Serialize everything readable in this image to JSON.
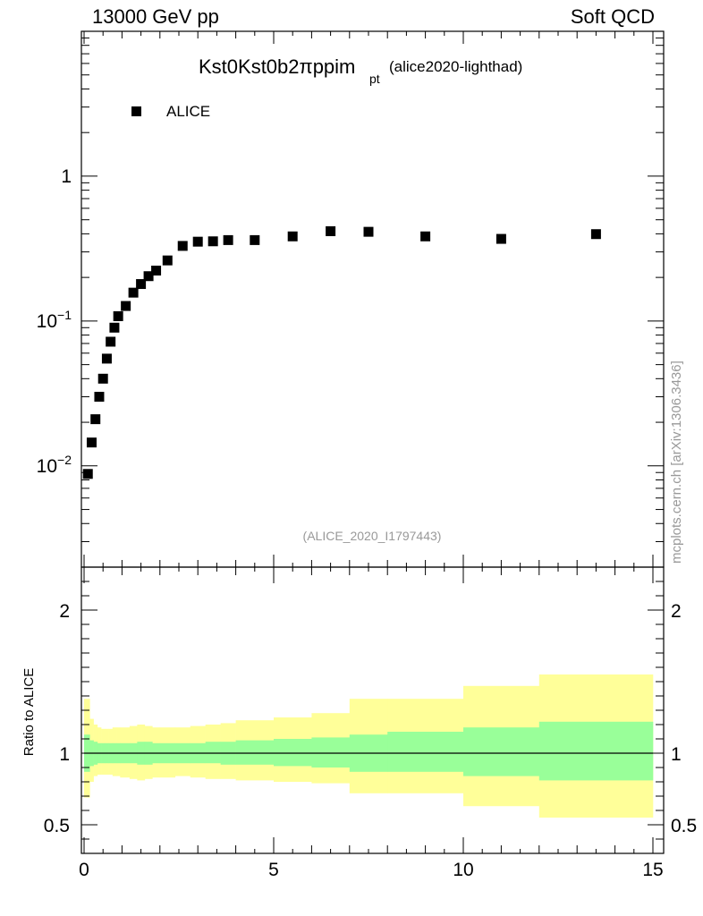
{
  "header": {
    "energy_label": "13000 GeV pp",
    "category_label": "Soft QCD"
  },
  "side_label": "mcplots.cern.ch [arXiv:1306.3436]",
  "chart_data": [
    {
      "type": "scatter",
      "panel": "main",
      "title": "Kst0Kst0b2πppim",
      "title_subscript": "pt",
      "title_suffix": "(alice2020-lighthad)",
      "watermark": "(ALICE_2020_I1797443)",
      "yscale": "log",
      "ylim": [
        0.002,
        10
      ],
      "xlim": [
        0,
        15
      ],
      "y_ticks": [
        {
          "value": 1,
          "label": "1"
        },
        {
          "value": 0.1,
          "label": "10",
          "exp": "−1"
        },
        {
          "value": 0.01,
          "label": "10",
          "exp": "−2"
        }
      ],
      "series": [
        {
          "name": "ALICE",
          "color": "#000000",
          "x": [
            0.1,
            0.2,
            0.3,
            0.4,
            0.5,
            0.6,
            0.7,
            0.8,
            0.9,
            1.1,
            1.3,
            1.5,
            1.7,
            1.9,
            2.2,
            2.6,
            3.0,
            3.4,
            3.8,
            4.5,
            5.5,
            6.5,
            7.5,
            9.0,
            11.0,
            13.5
          ],
          "y": [
            0.0088,
            0.0145,
            0.021,
            0.03,
            0.04,
            0.055,
            0.072,
            0.09,
            0.108,
            0.127,
            0.157,
            0.18,
            0.204,
            0.223,
            0.262,
            0.33,
            0.353,
            0.355,
            0.362,
            0.362,
            0.384,
            0.417,
            0.413,
            0.384,
            0.369,
            0.398
          ]
        }
      ]
    },
    {
      "type": "area",
      "panel": "ratio",
      "ylabel": "Ratio to ALICE",
      "ylim": [
        0.3,
        2.3
      ],
      "xlim": [
        0,
        15
      ],
      "x_ticks": [
        0,
        5,
        10,
        15
      ],
      "y_ticks": [
        0.5,
        1,
        2
      ],
      "reference_line": 1,
      "bins": [
        0,
        0.15,
        0.25,
        0.35,
        0.45,
        0.55,
        0.65,
        0.75,
        0.85,
        0.95,
        1.2,
        1.4,
        1.6,
        1.8,
        2.0,
        2.4,
        2.8,
        3.2,
        3.6,
        4.0,
        5.0,
        6.0,
        7.0,
        8.0,
        10.0,
        12.0,
        15.0
      ],
      "series": [
        {
          "name": "stat",
          "color": "#99ff99",
          "lo": [
            0.87,
            0.91,
            0.92,
            0.93,
            0.93,
            0.93,
            0.93,
            0.93,
            0.93,
            0.93,
            0.93,
            0.92,
            0.92,
            0.93,
            0.93,
            0.93,
            0.93,
            0.93,
            0.92,
            0.92,
            0.91,
            0.9,
            0.87,
            0.87,
            0.84,
            0.81
          ],
          "hi": [
            1.13,
            1.09,
            1.08,
            1.07,
            1.07,
            1.07,
            1.07,
            1.07,
            1.07,
            1.07,
            1.07,
            1.08,
            1.08,
            1.07,
            1.07,
            1.07,
            1.07,
            1.08,
            1.08,
            1.09,
            1.1,
            1.11,
            1.13,
            1.15,
            1.18,
            1.22
          ]
        },
        {
          "name": "syst",
          "color": "#ffff99",
          "lo": [
            0.69,
            0.8,
            0.84,
            0.85,
            0.85,
            0.85,
            0.85,
            0.84,
            0.84,
            0.83,
            0.82,
            0.81,
            0.82,
            0.83,
            0.83,
            0.84,
            0.83,
            0.82,
            0.82,
            0.81,
            0.8,
            0.79,
            0.72,
            0.72,
            0.63,
            0.55
          ],
          "hi": [
            1.38,
            1.24,
            1.2,
            1.18,
            1.17,
            1.17,
            1.17,
            1.18,
            1.18,
            1.18,
            1.19,
            1.2,
            1.19,
            1.18,
            1.18,
            1.18,
            1.19,
            1.2,
            1.21,
            1.23,
            1.25,
            1.28,
            1.38,
            1.38,
            1.47,
            1.55
          ]
        }
      ]
    }
  ]
}
